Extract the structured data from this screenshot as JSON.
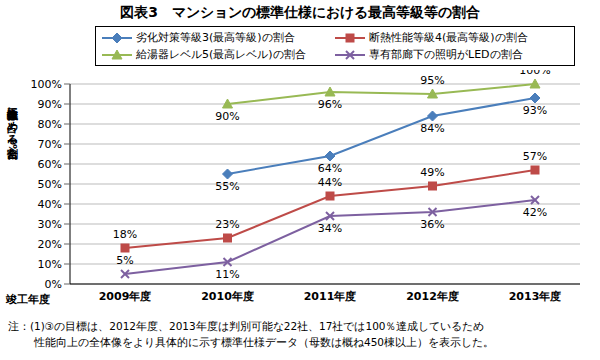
{
  "chart_data": {
    "type": "line",
    "title": "図表3　マンションの標準仕様における最高等級等の割合",
    "x_label": "竣工年度",
    "y_label": "竣工棟数全体に占める割合[%]",
    "categories": [
      "2009年度",
      "2010年度",
      "2011年度",
      "2012年度",
      "2013年度"
    ],
    "series": [
      {
        "name": "劣化対策等級3(最高等級)の割合",
        "color": "#4a7ebb",
        "marker": "diamond",
        "values": [
          null,
          55,
          64,
          84,
          93
        ],
        "value_labels": [
          null,
          "55%",
          "64%",
          "84%",
          "93%"
        ]
      },
      {
        "name": "断熱性能等級4(最高等級)の割合",
        "color": "#be4b48",
        "marker": "square",
        "values": [
          18,
          23,
          44,
          49,
          57
        ],
        "value_labels": [
          "18%",
          "23%",
          "44%",
          "49%",
          "57%"
        ]
      },
      {
        "name": "給湯器レベル5(最高レベル)の割合",
        "color": "#98b954",
        "marker": "triangle",
        "values": [
          null,
          90,
          96,
          95,
          100
        ],
        "value_labels": [
          null,
          "90%",
          "96%",
          "95%",
          "100%"
        ]
      },
      {
        "name": "専有部廊下の照明がLEDの割合",
        "color": "#7d60a0",
        "marker": "x",
        "values": [
          5,
          11,
          34,
          36,
          42
        ],
        "value_labels": [
          "5%",
          "11%",
          "34%",
          "36%",
          "42%"
        ]
      }
    ],
    "ylim": [
      0,
      100
    ],
    "yticks": [
      {
        "value": 0,
        "label": "0%"
      },
      {
        "value": 10,
        "label": "10%"
      },
      {
        "value": 20,
        "label": "20%"
      },
      {
        "value": 30,
        "label": "30%"
      },
      {
        "value": 40,
        "label": "40%"
      },
      {
        "value": 50,
        "label": "50%"
      },
      {
        "value": 60,
        "label": "60%"
      },
      {
        "value": 70,
        "label": "70%"
      },
      {
        "value": 80,
        "label": "80%"
      },
      {
        "value": 90,
        "label": "90%"
      },
      {
        "value": 100,
        "label": "100%"
      }
    ],
    "grid": true,
    "legend": "top",
    "data_labels": true,
    "notes": [
      "注：(1)③の目標は、2012年度、2013年度は判別可能な22社、17社では100％達成しているため",
      "性能向上の全体像をより具体的に示す標準仕様データ（母数は概ね450棟以上）を表示した。"
    ]
  }
}
